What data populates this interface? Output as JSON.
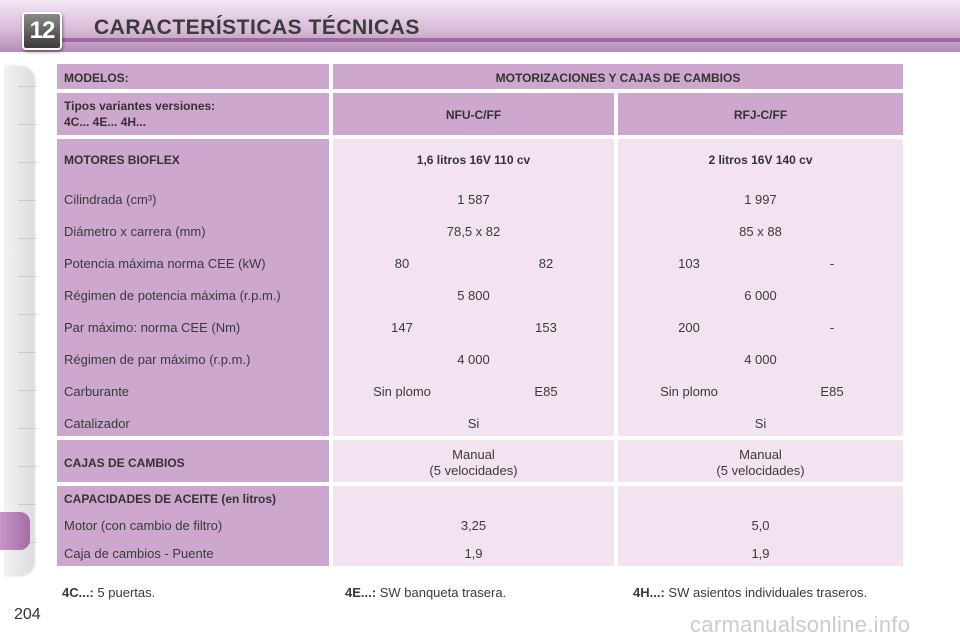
{
  "header": {
    "chapter_number": "12",
    "title": "CARACTERÍSTICAS TÉCNICAS"
  },
  "table": {
    "col_models": "MODELOS:",
    "col_engines": "MOTORIZACIONES Y CAJAS DE CAMBIOS",
    "variants_line1": "Tipos variantes versiones:",
    "variants_line2": "4C... 4E... 4H...",
    "variant_a": "NFU-C/FF",
    "variant_b": "RFJ-C/FF",
    "engines_label": "MOTORES BIOFLEX",
    "engine_a": "1,6 litros 16V 110 cv",
    "engine_b": "2 litros 16V 140 cv",
    "rows": {
      "displacement": {
        "label": "Cilindrada (cm³)",
        "a": "1 587",
        "b": "1 997"
      },
      "bore_stroke": {
        "label": "Diámetro x carrera (mm)",
        "a": "78,5 x 82",
        "b": "85 x 88"
      },
      "max_power": {
        "label": "Potencia máxima norma CEE (kW)",
        "a1": "80",
        "a2": "82",
        "b1": "103",
        "b2": "-"
      },
      "power_rpm": {
        "label": "Régimen de potencia máxima (r.p.m.)",
        "a": "5 800",
        "b": "6 000"
      },
      "max_torque": {
        "label": "Par máximo: norma CEE (Nm)",
        "a1": "147",
        "a2": "153",
        "b1": "200",
        "b2": "-"
      },
      "torque_rpm": {
        "label": "Régimen de par máximo (r.p.m.)",
        "a": "4 000",
        "b": "4 000"
      },
      "fuel": {
        "label": "Carburante",
        "a1": "Sin plomo",
        "a2": "E85",
        "b1": "Sin plomo",
        "b2": "E85"
      },
      "catalyst": {
        "label": "Catalizador",
        "a": "Si",
        "b": "Si"
      }
    },
    "gearbox": {
      "label": "CAJAS DE CAMBIOS",
      "a_line1": "Manual",
      "a_line2": "(5 velocidades)",
      "b_line1": "Manual",
      "b_line2": "(5 velocidades)"
    },
    "oil": {
      "label": "CAPACIDADES DE ACEITE (en litros)",
      "engine_label": "Motor (con cambio de filtro)",
      "engine_a": "3,25",
      "engine_b": "5,0",
      "gearbox_label": "Caja de cambios - Puente",
      "gearbox_a": "1,9",
      "gearbox_b": "1,9"
    }
  },
  "footnotes": [
    {
      "key": "4C...:",
      "text": "5 puertas."
    },
    {
      "key": "4E...:",
      "text": "SW banqueta trasera."
    },
    {
      "key": "4H...:",
      "text": "SW asientos individuales traseros."
    }
  ],
  "page_number": "204",
  "watermark": "carmanualsonline.info",
  "colors": {
    "header_purple": "#b68bb7",
    "label_cell": "#cda7cd",
    "value_cell": "#f3e3f1"
  }
}
